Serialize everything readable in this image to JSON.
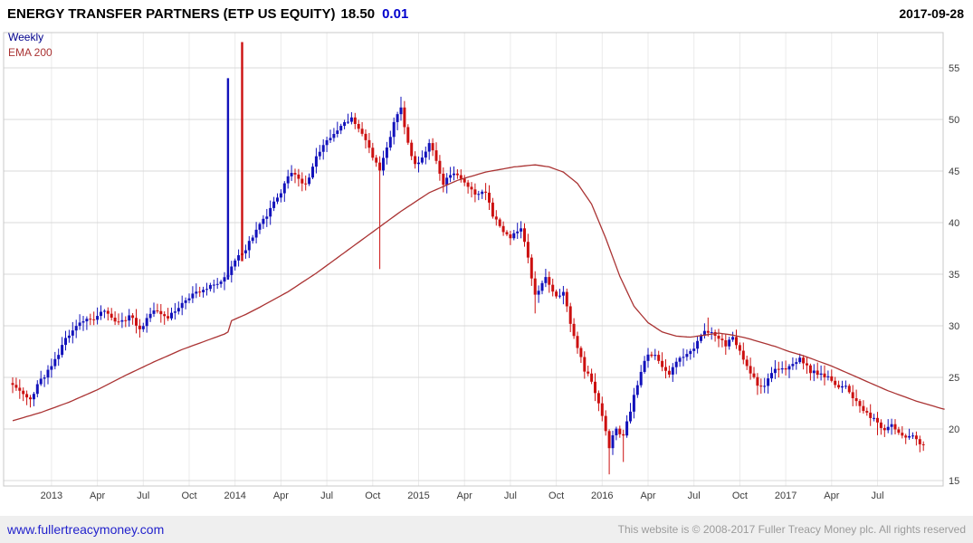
{
  "header": {
    "title": "ENERGY TRANSFER PARTNERS (ETP US EQUITY)",
    "price": "18.50",
    "change": "0.01",
    "date": "2017-09-28"
  },
  "legend": {
    "timeframe": "Weekly",
    "ema_label": "EMA 200"
  },
  "footer": {
    "site_link": "www.fullertreacymoney.com",
    "copyright": "This website is © 2008-2017 Fuller Treacy Money plc. All rights reserved"
  },
  "chart_data": {
    "type": "candlestick",
    "title": "ENERGY TRANSFER PARTNERS (ETP US EQUITY)",
    "interval": "Weekly",
    "overlay": "EMA 200",
    "last_price": 18.5,
    "change": 0.01,
    "as_of": "2017-09-28",
    "y_axis": {
      "min": 15,
      "max": 55,
      "step": 5,
      "ticks": [
        55,
        50,
        45,
        40,
        35,
        30,
        25,
        20,
        15
      ]
    },
    "x_ticks": [
      {
        "week": 11,
        "label": "2013"
      },
      {
        "week": 24,
        "label": "Apr"
      },
      {
        "week": 37,
        "label": "Jul"
      },
      {
        "week": 50,
        "label": "Oct"
      },
      {
        "week": 63,
        "label": "2014"
      },
      {
        "week": 76,
        "label": "Apr"
      },
      {
        "week": 89,
        "label": "Jul"
      },
      {
        "week": 102,
        "label": "Oct"
      },
      {
        "week": 115,
        "label": "2015"
      },
      {
        "week": 128,
        "label": "Apr"
      },
      {
        "week": 141,
        "label": "Jul"
      },
      {
        "week": 154,
        "label": "Oct"
      },
      {
        "week": 167,
        "label": "2016"
      },
      {
        "week": 180,
        "label": "Apr"
      },
      {
        "week": 193,
        "label": "Jul"
      },
      {
        "week": 206,
        "label": "Oct"
      },
      {
        "week": 219,
        "label": "2017"
      },
      {
        "week": 232,
        "label": "Apr"
      },
      {
        "week": 245,
        "label": "Jul"
      }
    ],
    "weeks_total": 259,
    "price_anchors": [
      [
        0,
        24.3
      ],
      [
        3,
        23.4
      ],
      [
        5,
        23.0
      ],
      [
        8,
        24.8
      ],
      [
        11,
        26.0
      ],
      [
        15,
        28.6
      ],
      [
        19,
        30.2
      ],
      [
        23,
        30.8
      ],
      [
        26,
        31.4
      ],
      [
        30,
        30.2
      ],
      [
        33,
        31.0
      ],
      [
        36,
        29.8
      ],
      [
        40,
        31.4
      ],
      [
        44,
        30.8
      ],
      [
        48,
        32.2
      ],
      [
        52,
        33.2
      ],
      [
        56,
        33.8
      ],
      [
        59,
        34.4
      ],
      [
        61,
        35.0
      ],
      [
        63,
        36.3
      ],
      [
        65,
        37.0
      ],
      [
        68,
        38.6
      ],
      [
        72,
        40.8
      ],
      [
        76,
        43.0
      ],
      [
        79,
        45.0
      ],
      [
        83,
        43.6
      ],
      [
        86,
        46.4
      ],
      [
        89,
        48.0
      ],
      [
        93,
        49.4
      ],
      [
        96,
        50.2
      ],
      [
        99,
        48.6
      ],
      [
        101,
        47.2
      ],
      [
        104,
        45.0
      ],
      [
        106,
        47.2
      ],
      [
        108,
        49.8
      ],
      [
        110,
        51.0
      ],
      [
        112,
        47.6
      ],
      [
        114,
        45.6
      ],
      [
        116,
        46.4
      ],
      [
        118,
        47.6
      ],
      [
        120,
        46.0
      ],
      [
        122,
        43.8
      ],
      [
        125,
        44.8
      ],
      [
        128,
        44.0
      ],
      [
        131,
        42.6
      ],
      [
        134,
        42.9
      ],
      [
        136,
        40.8
      ],
      [
        139,
        39.2
      ],
      [
        141,
        38.6
      ],
      [
        144,
        39.6
      ],
      [
        146,
        36.6
      ],
      [
        148,
        32.8
      ],
      [
        151,
        34.6
      ],
      [
        154,
        32.8
      ],
      [
        156,
        33.4
      ],
      [
        158,
        30.4
      ],
      [
        160,
        28.0
      ],
      [
        162,
        25.6
      ],
      [
        164,
        24.8
      ],
      [
        166,
        22.6
      ],
      [
        168,
        20.0
      ],
      [
        169,
        18.3
      ],
      [
        171,
        20.2
      ],
      [
        173,
        19.2
      ],
      [
        176,
        23.2
      ],
      [
        178,
        25.6
      ],
      [
        180,
        27.4
      ],
      [
        182,
        27.0
      ],
      [
        184,
        26.2
      ],
      [
        186,
        25.2
      ],
      [
        189,
        27.0
      ],
      [
        191,
        27.2
      ],
      [
        193,
        27.9
      ],
      [
        196,
        29.4
      ],
      [
        198,
        29.6
      ],
      [
        200,
        28.8
      ],
      [
        202,
        28.2
      ],
      [
        204,
        28.8
      ],
      [
        206,
        27.6
      ],
      [
        208,
        26.2
      ],
      [
        211,
        24.2
      ],
      [
        213,
        24.1
      ],
      [
        215,
        25.4
      ],
      [
        217,
        25.8
      ],
      [
        219,
        25.9
      ],
      [
        221,
        26.4
      ],
      [
        223,
        26.8
      ],
      [
        226,
        25.6
      ],
      [
        229,
        25.3
      ],
      [
        232,
        24.7
      ],
      [
        234,
        24.0
      ],
      [
        236,
        24.3
      ],
      [
        238,
        23.1
      ],
      [
        240,
        22.2
      ],
      [
        242,
        21.5
      ],
      [
        245,
        20.6
      ],
      [
        247,
        19.9
      ],
      [
        249,
        20.3
      ],
      [
        251,
        19.6
      ],
      [
        253,
        19.1
      ],
      [
        255,
        19.3
      ],
      [
        257,
        18.7
      ],
      [
        258,
        18.5
      ]
    ],
    "ema_anchors": [
      [
        0,
        20.8
      ],
      [
        8,
        21.6
      ],
      [
        16,
        22.6
      ],
      [
        24,
        23.8
      ],
      [
        32,
        25.2
      ],
      [
        40,
        26.5
      ],
      [
        48,
        27.7
      ],
      [
        56,
        28.7
      ],
      [
        60,
        29.2
      ],
      [
        61,
        29.4
      ],
      [
        62,
        30.5
      ],
      [
        66,
        31.1
      ],
      [
        70,
        31.8
      ],
      [
        78,
        33.3
      ],
      [
        86,
        35.1
      ],
      [
        94,
        37.1
      ],
      [
        102,
        39.1
      ],
      [
        110,
        41.1
      ],
      [
        118,
        42.9
      ],
      [
        126,
        44.1
      ],
      [
        134,
        44.9
      ],
      [
        142,
        45.4
      ],
      [
        148,
        45.6
      ],
      [
        152,
        45.4
      ],
      [
        156,
        44.9
      ],
      [
        160,
        43.8
      ],
      [
        164,
        41.8
      ],
      [
        168,
        38.5
      ],
      [
        172,
        34.8
      ],
      [
        176,
        31.9
      ],
      [
        180,
        30.3
      ],
      [
        184,
        29.4
      ],
      [
        188,
        29.0
      ],
      [
        192,
        28.9
      ],
      [
        196,
        29.1
      ],
      [
        200,
        29.3
      ],
      [
        204,
        29.1
      ],
      [
        208,
        28.8
      ],
      [
        212,
        28.4
      ],
      [
        216,
        28.0
      ],
      [
        220,
        27.5
      ],
      [
        224,
        27.1
      ],
      [
        228,
        26.6
      ],
      [
        232,
        26.1
      ],
      [
        236,
        25.5
      ],
      [
        240,
        24.9
      ],
      [
        244,
        24.3
      ],
      [
        248,
        23.7
      ],
      [
        252,
        23.2
      ],
      [
        256,
        22.7
      ],
      [
        260,
        22.3
      ],
      [
        264,
        21.9
      ]
    ],
    "overrides": [
      {
        "week": 61,
        "high": 54.0,
        "wide": true
      },
      {
        "week": 65,
        "high": 57.5,
        "force": "down",
        "wide": true
      },
      {
        "week": 104,
        "low": 35.5
      },
      {
        "week": 110,
        "high": 52.2
      },
      {
        "week": 148,
        "low": 31.2
      },
      {
        "week": 169,
        "low": 15.6
      },
      {
        "week": 173,
        "low": 16.8
      },
      {
        "week": 197,
        "high": 30.8
      },
      {
        "week": 211,
        "low": 23.3
      },
      {
        "week": 223,
        "high": 27.3
      },
      {
        "week": 245,
        "low": 19.4
      }
    ],
    "colors": {
      "up": "#1212bb",
      "down": "#cc1010",
      "ema": "#aa3333",
      "grid": "#d8d8d8",
      "vgrid": "#ebebeb",
      "frame": "#c8c8c8",
      "axis_text": "#3c3c3c"
    }
  }
}
